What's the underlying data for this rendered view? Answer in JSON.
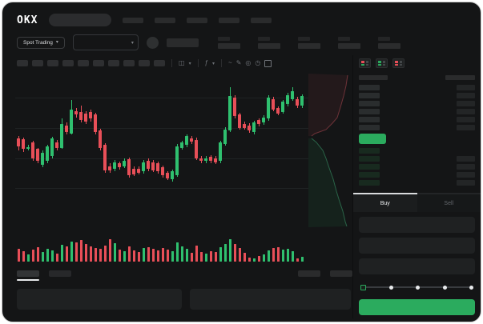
{
  "app": {
    "logo_text": "OKX"
  },
  "header": {
    "nav_placeholder_count": 5,
    "search": {
      "placeholder": ""
    }
  },
  "market_bar": {
    "market_type_label": "Spot Trading",
    "chevron_glyph": "▾",
    "stat_placeholder_count": 5
  },
  "chart_toolbar": {
    "interval_placeholder_count": 10,
    "icons": [
      {
        "name": "chart-type-icon",
        "glyph": "◫"
      },
      {
        "name": "chevron-down-icon",
        "glyph": "▾"
      },
      {
        "name": "indicators-icon",
        "glyph": "ƒ"
      },
      {
        "name": "chevron-down-icon",
        "glyph": "▾"
      },
      {
        "name": "line-tool-icon",
        "glyph": "~"
      },
      {
        "name": "draw-icon",
        "glyph": "✎"
      },
      {
        "name": "camera-icon",
        "glyph": "◎"
      },
      {
        "name": "history-icon",
        "glyph": "◷"
      }
    ]
  },
  "chart_data": {
    "type": "candlestick",
    "title": "",
    "axis_labels_visible": false,
    "gridlines_y_pct": [
      16.5,
      36,
      55,
      73.5
    ],
    "colors": {
      "up": "#2fc06f",
      "down": "#e84f58"
    },
    "candles_format": [
      "direction(1=up,0=down)",
      "body_top_pct",
      "body_bottom_pct",
      "wick_top_pct",
      "wick_bottom_pct"
    ],
    "candles": [
      [
        0,
        42.5,
        47.5,
        40.8,
        50
      ],
      [
        0,
        43,
        49.2,
        41.7,
        50.8
      ],
      [
        1,
        48,
        49.2,
        46.7,
        50
      ],
      [
        0,
        45,
        55,
        43.7,
        56.7
      ],
      [
        0,
        49.2,
        56.7,
        48.3,
        58.3
      ],
      [
        1,
        51.7,
        59.2,
        50,
        60.8
      ],
      [
        1,
        47.5,
        56.7,
        46.3,
        58
      ],
      [
        1,
        42.5,
        53.3,
        41.3,
        55
      ],
      [
        0,
        45,
        48.3,
        43.3,
        50
      ],
      [
        1,
        33.3,
        48.3,
        30,
        49.2
      ],
      [
        0,
        34.2,
        38.3,
        32.5,
        40
      ],
      [
        1,
        24.2,
        39.2,
        18.3,
        40
      ],
      [
        0,
        25,
        27.5,
        23.3,
        29.2
      ],
      [
        0,
        25.8,
        30.8,
        21.7,
        32.5
      ],
      [
        0,
        26.7,
        31.7,
        25,
        33.3
      ],
      [
        0,
        25.8,
        30,
        24.2,
        31.7
      ],
      [
        0,
        27.5,
        38.3,
        26.3,
        40
      ],
      [
        0,
        37.5,
        48.3,
        36.3,
        50
      ],
      [
        0,
        46.7,
        62.5,
        45.3,
        64.2
      ],
      [
        0,
        60,
        62.5,
        58.3,
        64.2
      ],
      [
        1,
        57.5,
        61.7,
        56.3,
        63
      ],
      [
        0,
        58.3,
        60.8,
        57,
        62
      ],
      [
        1,
        56.7,
        60,
        55.3,
        61.3
      ],
      [
        0,
        55.8,
        65.8,
        54.7,
        67
      ],
      [
        0,
        61.7,
        65,
        60.3,
        66.3
      ],
      [
        0,
        61.7,
        64.2,
        60.3,
        65.3
      ],
      [
        1,
        57.5,
        63.3,
        56.3,
        64.7
      ],
      [
        0,
        56.7,
        61.7,
        55.3,
        63
      ],
      [
        0,
        57.5,
        62.5,
        56.3,
        63.7
      ],
      [
        0,
        58.3,
        63.3,
        57,
        64.7
      ],
      [
        0,
        60.8,
        65.8,
        59.7,
        67
      ],
      [
        0,
        64.2,
        67.5,
        63,
        68.7
      ],
      [
        1,
        63.3,
        68.3,
        62,
        69.7
      ],
      [
        1,
        47.5,
        65.8,
        45.8,
        66.7
      ],
      [
        1,
        45,
        48.3,
        43.7,
        49.7
      ],
      [
        1,
        40.8,
        46.7,
        39.7,
        48
      ],
      [
        0,
        42.5,
        44.2,
        40.8,
        45.8
      ],
      [
        0,
        43.3,
        55,
        42,
        56.3
      ],
      [
        0,
        55,
        56.7,
        53.7,
        58
      ],
      [
        1,
        55,
        56.7,
        53.7,
        58
      ],
      [
        0,
        54.2,
        56.7,
        53,
        58
      ],
      [
        0,
        55,
        57.5,
        53.7,
        58.7
      ],
      [
        1,
        45,
        56.7,
        43.7,
        58
      ],
      [
        1,
        36.7,
        45.8,
        35.3,
        47
      ],
      [
        1,
        15.8,
        37.5,
        10,
        38.3
      ],
      [
        0,
        16.7,
        28.3,
        15.3,
        29.7
      ],
      [
        0,
        27.5,
        35.8,
        26.3,
        37
      ],
      [
        0,
        33.3,
        35.8,
        32,
        37
      ],
      [
        0,
        34.2,
        37.5,
        33,
        38.7
      ],
      [
        1,
        32.5,
        38.3,
        31.3,
        39.7
      ],
      [
        0,
        30.8,
        33.3,
        29.7,
        34.7
      ],
      [
        1,
        29.2,
        32.5,
        28,
        33.7
      ],
      [
        1,
        16.7,
        30,
        15.3,
        31.3
      ],
      [
        0,
        17.5,
        24.2,
        16.3,
        25.3
      ],
      [
        0,
        23.3,
        26.7,
        22,
        28
      ],
      [
        1,
        19.2,
        25.8,
        18,
        27
      ],
      [
        1,
        15,
        20.8,
        13.7,
        22
      ],
      [
        1,
        12.5,
        17.5,
        10.3,
        18.7
      ],
      [
        0,
        17.5,
        21.7,
        16.3,
        23
      ],
      [
        1,
        15.8,
        21.7,
        14.7,
        23
      ]
    ],
    "volume_pct": [
      55,
      45,
      30,
      50,
      60,
      40,
      55,
      48,
      35,
      70,
      65,
      85,
      80,
      90,
      75,
      62,
      58,
      52,
      68,
      95,
      78,
      50,
      42,
      62,
      46,
      40,
      56,
      60,
      52,
      47,
      57,
      50,
      42,
      80,
      62,
      55,
      36,
      66,
      40,
      34,
      44,
      40,
      60,
      72,
      92,
      74,
      58,
      38,
      18,
      14,
      24,
      30,
      46,
      56,
      60,
      50,
      55,
      44,
      14,
      20
    ],
    "depth": {
      "viewbox_w": 55,
      "viewbox_h": 192,
      "ask_line_color": "#6e3238",
      "ask_fill": "rgba(150,55,62,0.12)",
      "bid_line_color": "#2a6448",
      "bid_fill": "rgba(44,160,92,0.10)",
      "ask_line": [
        [
          49,
          2
        ],
        [
          47,
          15
        ],
        [
          44,
          28
        ],
        [
          40,
          42
        ],
        [
          36,
          55
        ],
        [
          30,
          62
        ],
        [
          22,
          70
        ],
        [
          8,
          75
        ],
        [
          4,
          78
        ]
      ],
      "bid_line": [
        [
          4,
          81
        ],
        [
          10,
          86
        ],
        [
          18,
          96
        ],
        [
          22,
          106
        ],
        [
          26,
          118
        ],
        [
          31,
          132
        ],
        [
          35,
          147
        ],
        [
          39,
          160
        ],
        [
          43,
          172
        ],
        [
          46,
          185
        ],
        [
          48,
          191
        ]
      ]
    }
  },
  "orderbook": {
    "mode_icons": [
      {
        "name": "book-mode-both-icon",
        "bars": [
          "down",
          "up"
        ]
      },
      {
        "name": "book-mode-bids-icon",
        "bars": [
          "up",
          "up"
        ]
      },
      {
        "name": "book-mode-asks-icon",
        "bars": [
          "down",
          "down"
        ]
      }
    ],
    "ask_row_count": 6,
    "bid_row_count": 5,
    "ask_price_color": "#2a2d2e",
    "bid_price_color": "#182a1f",
    "last_price_highlight_color": "#2bab5e"
  },
  "trade_panel": {
    "buy_tab_label": "Buy",
    "sell_tab_label": "Sell",
    "active_tab": "Buy",
    "input_placeholder_count": 3,
    "slider": {
      "stops_pct": [
        0,
        25,
        50,
        75,
        100
      ],
      "value_pct": 0
    },
    "submit_button_color": "#2bab5e"
  },
  "bottom_bar": {
    "left_tab_count": 2,
    "active_left_tab_index": 0,
    "right_button_count": 2,
    "panel_count": 2
  }
}
